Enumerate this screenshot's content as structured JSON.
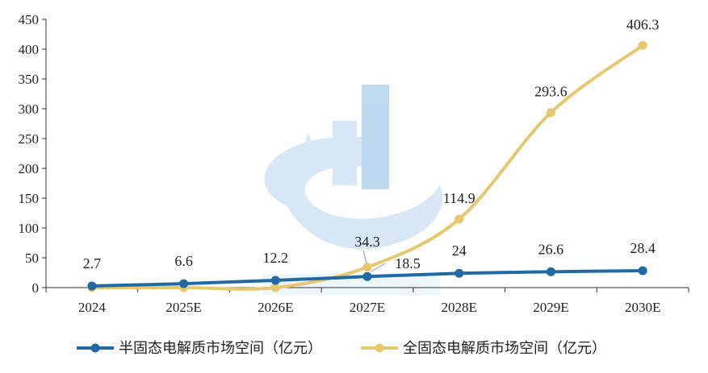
{
  "chart_data": {
    "type": "line",
    "categories": [
      "2024",
      "2025E",
      "2026E",
      "2027E",
      "2028E",
      "2029E",
      "2030E"
    ],
    "ylim": [
      0,
      450
    ],
    "yticks": [
      0,
      50,
      100,
      150,
      200,
      250,
      300,
      350,
      400,
      450
    ],
    "grid": false,
    "legend_position": "bottom",
    "series": [
      {
        "name": "半固态电解质市场空间（亿元）",
        "values": [
          2.7,
          6.6,
          12.2,
          18.5,
          24,
          26.6,
          28.4
        ],
        "labels": [
          "2.7",
          "6.6",
          "12.2",
          "18.5",
          "24",
          "26.6",
          "28.4"
        ],
        "color": "#1f6aa5"
      },
      {
        "name": "全固态电解质市场空间（亿元）",
        "values": [
          0,
          0,
          0,
          34.3,
          114.9,
          293.6,
          406.3
        ],
        "labels": [
          "",
          "",
          "",
          "34.3",
          "114.9",
          "293.6",
          "406.3"
        ],
        "color": "#e6c76e"
      }
    ]
  },
  "watermark": {
    "colors": [
      "#b8d4ee",
      "#6ea6d8"
    ]
  }
}
